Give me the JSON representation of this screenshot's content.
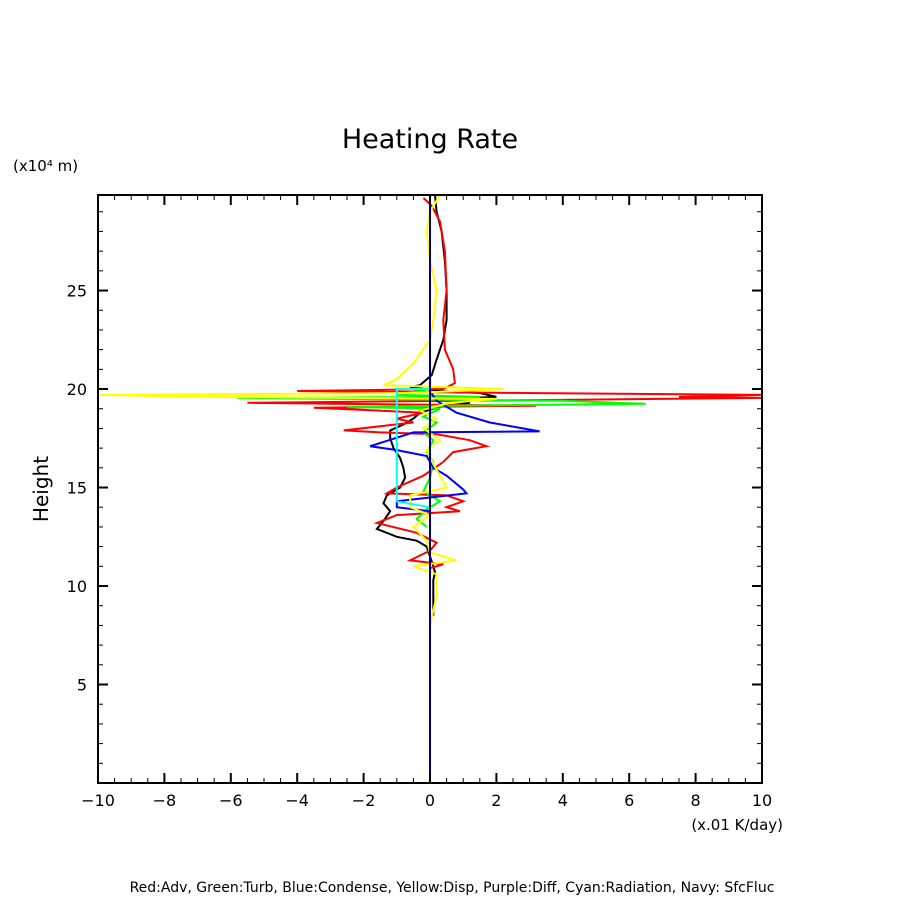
{
  "chart_data": {
    "type": "line",
    "title": "Heating Rate",
    "xlabel": "",
    "x_unit_label": "(x.01 K/day)",
    "ylabel": "Height",
    "y_unit_label": "(x10⁴ m)",
    "xlim": [
      -10,
      10
    ],
    "ylim": [
      0,
      29.85
    ],
    "x_ticks": [
      -10,
      -8,
      -6,
      -4,
      -2,
      0,
      2,
      4,
      6,
      8,
      10
    ],
    "x_tick_labels": [
      "−10",
      "−8",
      "−6",
      "−4",
      "−2",
      "0",
      "2",
      "4",
      "6",
      "8",
      "10"
    ],
    "x_minor_step": 0.5,
    "y_ticks": [
      5,
      10,
      15,
      20,
      25
    ],
    "y_tick_labels": [
      "5",
      "10",
      "15",
      "20",
      "25"
    ],
    "y_minor_step": 1,
    "grid": false,
    "legend_text": "Red:Adv, Green:Turb, Blue:Condense, Yellow:Disp, Purple:Diff, Cyan:Radiation, Navy: SfcFluc",
    "legend_placement": "bottom",
    "series": [
      {
        "name": "Black",
        "color": "#000000",
        "points": [
          [
            0.15,
            29.85
          ],
          [
            0.2,
            29
          ],
          [
            0.35,
            28
          ],
          [
            0.45,
            26.5
          ],
          [
            0.5,
            25
          ],
          [
            0.5,
            23.5
          ],
          [
            0.4,
            22.5
          ],
          [
            0.2,
            21.5
          ],
          [
            0.05,
            20.7
          ],
          [
            -0.3,
            20.2
          ],
          [
            -0.6,
            20.1
          ],
          [
            0.3,
            19.9
          ],
          [
            1.5,
            19.8
          ],
          [
            2.0,
            19.6
          ],
          [
            0.5,
            19.5
          ],
          [
            1.2,
            19.3
          ],
          [
            0.3,
            19.1
          ],
          [
            -0.3,
            18.8
          ],
          [
            -0.5,
            18.5
          ],
          [
            -0.8,
            18.2
          ],
          [
            -1.2,
            17.9
          ],
          [
            -1.2,
            17.5
          ],
          [
            -1.1,
            17.0
          ],
          [
            -0.9,
            16.5
          ],
          [
            -0.8,
            16.0
          ],
          [
            -0.75,
            15.5
          ],
          [
            -0.9,
            15.0
          ],
          [
            -1.3,
            14.6
          ],
          [
            -1.4,
            14.2
          ],
          [
            -1.2,
            13.8
          ],
          [
            -1.4,
            13.3
          ],
          [
            -1.6,
            12.9
          ],
          [
            -1.0,
            12.5
          ],
          [
            -0.4,
            12.3
          ],
          [
            -0.1,
            12.0
          ],
          [
            0.0,
            11.5
          ],
          [
            0.1,
            11.0
          ],
          [
            0.15,
            10.7
          ],
          [
            0.1,
            10.3
          ],
          [
            0.1,
            8.5
          ]
        ]
      },
      {
        "name": "Red",
        "color": "#ff0000",
        "points": [
          [
            -0.2,
            29.7
          ],
          [
            0.05,
            29.3
          ],
          [
            0.3,
            28.5
          ],
          [
            0.45,
            27
          ],
          [
            0.5,
            25
          ],
          [
            0.4,
            23.5
          ],
          [
            0.45,
            22
          ],
          [
            0.7,
            21
          ],
          [
            0.75,
            20.3
          ],
          [
            0.4,
            20.0
          ],
          [
            -4.0,
            19.9
          ],
          [
            -1.0,
            19.85
          ],
          [
            10,
            19.7
          ],
          [
            7.5,
            19.6
          ],
          [
            10,
            19.55
          ],
          [
            -5.5,
            19.3
          ],
          [
            3.2,
            19.15
          ],
          [
            -3.5,
            19.05
          ],
          [
            -0.2,
            18.8
          ],
          [
            -1.0,
            18.5
          ],
          [
            -0.5,
            18.3
          ],
          [
            -2.6,
            17.9
          ],
          [
            -1.5,
            17.8
          ],
          [
            0.2,
            17.7
          ],
          [
            1.2,
            17.4
          ],
          [
            1.7,
            17.1
          ],
          [
            0.7,
            16.8
          ],
          [
            0.4,
            16.3
          ],
          [
            -0.2,
            15.6
          ],
          [
            -1.0,
            15.0
          ],
          [
            -1.3,
            14.7
          ],
          [
            0.5,
            14.6
          ],
          [
            1.0,
            14.3
          ],
          [
            0.5,
            14.0
          ],
          [
            0.9,
            13.8
          ],
          [
            -1.0,
            13.6
          ],
          [
            -1.6,
            13.2
          ],
          [
            -0.4,
            12.7
          ],
          [
            0.2,
            12.2
          ],
          [
            0.0,
            11.8
          ],
          [
            -0.6,
            11.3
          ],
          [
            0.4,
            11.1
          ],
          [
            0.0,
            10.9
          ]
        ]
      },
      {
        "name": "Green",
        "color": "#00ff00",
        "points": [
          [
            0.0,
            20.0
          ],
          [
            -1.0,
            19.7
          ],
          [
            1.5,
            19.6
          ],
          [
            -5.8,
            19.55
          ],
          [
            4.0,
            19.4
          ],
          [
            6.5,
            19.25
          ],
          [
            -2.5,
            19.1
          ],
          [
            0.3,
            19.0
          ],
          [
            -0.2,
            18.6
          ],
          [
            0.2,
            18.3
          ],
          [
            -0.2,
            17.8
          ],
          [
            0.1,
            17.4
          ],
          [
            -0.1,
            16.8
          ],
          [
            0.1,
            16.3
          ],
          [
            0.0,
            15.5
          ],
          [
            -0.2,
            14.8
          ],
          [
            0.3,
            14.3
          ],
          [
            -0.1,
            13.9
          ],
          [
            -0.4,
            13.4
          ],
          [
            -0.1,
            13.0
          ]
        ]
      },
      {
        "name": "Blue",
        "color": "#0000ff",
        "points": [
          [
            0.0,
            19.9
          ],
          [
            0.2,
            19.4
          ],
          [
            0.8,
            18.8
          ],
          [
            1.8,
            18.3
          ],
          [
            2.8,
            18.0
          ],
          [
            3.3,
            17.85
          ],
          [
            -0.5,
            17.8
          ],
          [
            -1.8,
            17.1
          ],
          [
            -1.0,
            16.9
          ],
          [
            -0.1,
            16.6
          ],
          [
            0.1,
            16.0
          ],
          [
            0.5,
            15.6
          ],
          [
            1.0,
            14.9
          ],
          [
            1.1,
            14.7
          ],
          [
            -1.0,
            14.3
          ],
          [
            -1.0,
            14.0
          ],
          [
            0.0,
            13.8
          ]
        ]
      },
      {
        "name": "Yellow",
        "color": "#ffff00",
        "points": [
          [
            0.3,
            29.85
          ],
          [
            0.0,
            29.0
          ],
          [
            -0.1,
            28
          ],
          [
            0.0,
            26.5
          ],
          [
            0.2,
            25
          ],
          [
            0.1,
            23.5
          ],
          [
            0.0,
            22.5
          ],
          [
            -0.5,
            21.3
          ],
          [
            -1.0,
            20.5
          ],
          [
            -1.4,
            20.2
          ],
          [
            2.2,
            20.0
          ],
          [
            -0.5,
            19.8
          ],
          [
            -10,
            19.7
          ],
          [
            -6.5,
            19.6
          ],
          [
            2.0,
            19.5
          ],
          [
            0.6,
            19.3
          ],
          [
            -0.3,
            18.9
          ],
          [
            0.2,
            18.5
          ],
          [
            -0.2,
            18.0
          ],
          [
            0.3,
            17.4
          ],
          [
            -0.1,
            16.9
          ],
          [
            0.1,
            16.2
          ],
          [
            0.5,
            15.0
          ],
          [
            -0.6,
            14.6
          ],
          [
            -0.6,
            14.0
          ],
          [
            0.0,
            13.6
          ],
          [
            -0.5,
            13.0
          ],
          [
            -0.1,
            12.3
          ],
          [
            0.0,
            11.7
          ],
          [
            0.8,
            11.3
          ],
          [
            -0.5,
            11.0
          ],
          [
            0.2,
            10.6
          ],
          [
            0.2,
            9.5
          ],
          [
            0.0,
            8.0
          ],
          [
            0.0,
            7.5
          ]
        ]
      },
      {
        "name": "Purple",
        "color": "#a020f0",
        "points": [
          [
            0.0,
            19.5
          ],
          [
            0.0,
            14.0
          ]
        ]
      },
      {
        "name": "Cyan",
        "color": "#00ffff",
        "points": [
          [
            0.0,
            20.0
          ],
          [
            -1.0,
            20.0
          ],
          [
            -1.0,
            14.3
          ],
          [
            0.0,
            14.0
          ]
        ]
      },
      {
        "name": "Navy",
        "color": "#000080",
        "points": [
          [
            0.0,
            29.85
          ],
          [
            0.0,
            0.0
          ]
        ]
      }
    ]
  }
}
